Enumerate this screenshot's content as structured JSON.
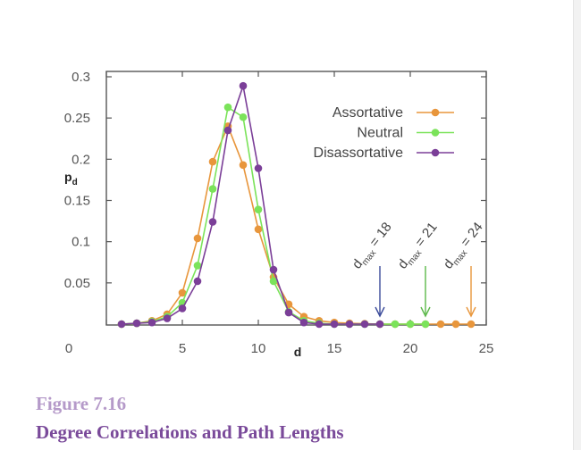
{
  "figure": {
    "label": "Figure  7.16",
    "title": "Degree Correlations and Path Lengths"
  },
  "chart_data": {
    "type": "line",
    "xlabel": "d",
    "ylabel": "p",
    "ylabel_sub": "d",
    "xlim": [
      0,
      25
    ],
    "ylim": [
      0,
      0.3
    ],
    "x_ticks": [
      {
        "value": 0,
        "label": "0"
      },
      {
        "value": 5,
        "label": "5"
      },
      {
        "value": 10,
        "label": "10"
      },
      {
        "value": 15,
        "label": "15"
      },
      {
        "value": 20,
        "label": "20"
      },
      {
        "value": 25,
        "label": "25"
      }
    ],
    "y_ticks": [
      {
        "value": 0.05,
        "label": "0.05"
      },
      {
        "value": 0.1,
        "label": "0.1"
      },
      {
        "value": 0.15,
        "label": "0.15"
      },
      {
        "value": 0.2,
        "label": "0.2"
      },
      {
        "value": 0.25,
        "label": "0.25"
      },
      {
        "value": 0.3,
        "label": "0.3"
      }
    ],
    "legend_position": "top-right",
    "series": [
      {
        "name": "Assortative",
        "color": "#e8963c",
        "x": [
          1,
          2,
          3,
          4,
          5,
          6,
          7,
          8,
          9,
          10,
          11,
          12,
          13,
          14,
          15,
          16,
          17,
          18,
          19,
          20,
          21,
          22,
          23,
          24
        ],
        "y": [
          0,
          0.001,
          0.004,
          0.012,
          0.038,
          0.104,
          0.197,
          0.24,
          0.193,
          0.115,
          0.057,
          0.024,
          0.009,
          0.004,
          0.002,
          0.001,
          0.0005,
          0,
          0,
          0,
          0,
          0,
          0,
          0
        ]
      },
      {
        "name": "Neutral",
        "color": "#7be35a",
        "x": [
          1,
          2,
          3,
          4,
          5,
          6,
          7,
          8,
          9,
          10,
          11,
          12,
          13,
          14,
          15,
          16,
          17,
          18,
          19,
          20,
          21
        ],
        "y": [
          0,
          0.001,
          0.003,
          0.009,
          0.026,
          0.071,
          0.164,
          0.263,
          0.251,
          0.139,
          0.052,
          0.015,
          0.004,
          0.001,
          0,
          0,
          0,
          0,
          0,
          0,
          0
        ]
      },
      {
        "name": "Disassortative",
        "color": "#7b3f98",
        "x": [
          1,
          2,
          3,
          4,
          5,
          6,
          7,
          8,
          9,
          10,
          11,
          12,
          13,
          14,
          15,
          16,
          17,
          18
        ],
        "y": [
          0,
          0.001,
          0.002,
          0.007,
          0.019,
          0.052,
          0.124,
          0.235,
          0.289,
          0.189,
          0.066,
          0.014,
          0.002,
          0,
          0,
          0,
          0,
          0
        ]
      }
    ],
    "annotations": [
      {
        "prefix": "d",
        "sub": "max",
        "suffix": " = 18",
        "x": 18,
        "color": "#3a4a9a"
      },
      {
        "prefix": "d",
        "sub": "max",
        "suffix": " = 21",
        "x": 21,
        "color": "#5cb84a"
      },
      {
        "prefix": "d",
        "sub": "max",
        "suffix": " = 24",
        "x": 24,
        "color": "#e8963c"
      }
    ]
  }
}
